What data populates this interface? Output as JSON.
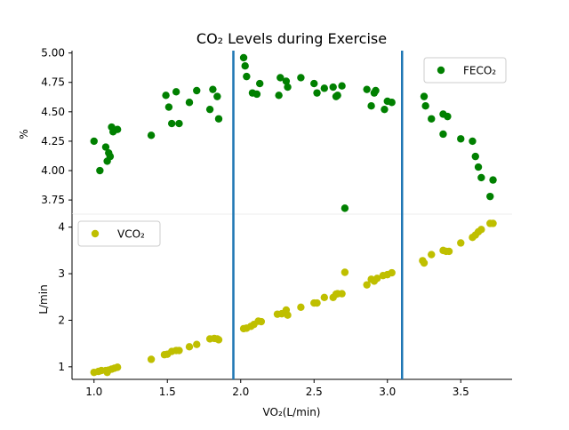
{
  "chart_data": [
    {
      "type": "scatter",
      "title": "CO₂ Levels during Exercise",
      "ylabel": "%",
      "xlim": [
        0.85,
        3.85
      ],
      "ylim": [
        3.63,
        5.02
      ],
      "yticks": [
        "3.75",
        "4.00",
        "4.25",
        "4.50",
        "4.75",
        "5.00"
      ],
      "yticks_values": [
        3.75,
        4.0,
        4.25,
        4.5,
        4.75,
        5.0
      ],
      "legend_position": "top-right",
      "vlines": [
        1.95,
        3.1
      ],
      "vline_color": "#1f77b4",
      "series": [
        {
          "name": "FECO₂",
          "color": "#008000",
          "x": [
            1.0,
            1.04,
            1.08,
            1.09,
            1.1,
            1.11,
            1.12,
            1.13,
            1.16,
            1.39,
            1.49,
            1.51,
            1.53,
            1.56,
            1.58,
            1.65,
            1.7,
            1.79,
            1.81,
            1.84,
            1.85,
            2.02,
            2.03,
            2.04,
            2.08,
            2.11,
            2.13,
            2.26,
            2.27,
            2.31,
            2.32,
            2.41,
            2.5,
            2.52,
            2.57,
            2.63,
            2.65,
            2.66,
            2.69,
            2.71,
            2.86,
            2.89,
            2.91,
            2.92,
            2.98,
            3.0,
            3.03,
            3.25,
            3.26,
            3.3,
            3.38,
            3.38,
            3.41,
            3.5,
            3.58,
            3.6,
            3.62,
            3.64,
            3.7,
            3.72
          ],
          "y": [
            4.25,
            4.0,
            4.2,
            4.08,
            4.15,
            4.12,
            4.37,
            4.33,
            4.35,
            4.3,
            4.64,
            4.54,
            4.4,
            4.67,
            4.4,
            4.58,
            4.68,
            4.52,
            4.69,
            4.63,
            4.44,
            4.96,
            4.89,
            4.8,
            4.66,
            4.65,
            4.74,
            4.64,
            4.79,
            4.76,
            4.71,
            4.79,
            4.74,
            4.66,
            4.7,
            4.71,
            4.63,
            4.64,
            4.72,
            3.68,
            4.69,
            4.55,
            4.66,
            4.68,
            4.52,
            4.59,
            4.58,
            4.63,
            4.55,
            4.44,
            4.48,
            4.31,
            4.46,
            4.27,
            4.25,
            4.12,
            4.03,
            3.94,
            3.78,
            3.92
          ]
        }
      ]
    },
    {
      "type": "scatter",
      "xlabel": "VO₂(L/min)",
      "ylabel": "L/min",
      "xlim": [
        0.85,
        3.85
      ],
      "ylim": [
        0.73,
        4.28
      ],
      "xticks": [
        "1.0",
        "1.5",
        "2.0",
        "2.5",
        "3.0",
        "3.5"
      ],
      "xticks_values": [
        1.0,
        1.5,
        2.0,
        2.5,
        3.0,
        3.5
      ],
      "yticks": [
        "1",
        "2",
        "3",
        "4"
      ],
      "yticks_values": [
        1,
        2,
        3,
        4
      ],
      "legend_position": "top-left",
      "vlines": [
        1.95,
        3.1
      ],
      "vline_color": "#1f77b4",
      "series": [
        {
          "name": "VCO₂",
          "color": "#bfbf00",
          "x": [
            1.0,
            1.03,
            1.05,
            1.08,
            1.09,
            1.1,
            1.12,
            1.14,
            1.16,
            1.39,
            1.48,
            1.5,
            1.53,
            1.56,
            1.58,
            1.65,
            1.7,
            1.79,
            1.82,
            1.84,
            1.85,
            2.02,
            2.04,
            2.07,
            2.09,
            2.12,
            2.14,
            2.25,
            2.28,
            2.31,
            2.32,
            2.41,
            2.5,
            2.52,
            2.57,
            2.63,
            2.65,
            2.66,
            2.69,
            2.71,
            2.86,
            2.89,
            2.91,
            2.93,
            2.97,
            3.0,
            3.03,
            3.24,
            3.25,
            3.3,
            3.38,
            3.4,
            3.42,
            3.5,
            3.58,
            3.6,
            3.62,
            3.64,
            3.7,
            3.72
          ],
          "y": [
            0.88,
            0.9,
            0.92,
            0.92,
            0.88,
            0.93,
            0.95,
            0.97,
            0.99,
            1.16,
            1.26,
            1.27,
            1.33,
            1.35,
            1.35,
            1.43,
            1.48,
            1.6,
            1.61,
            1.6,
            1.58,
            1.82,
            1.83,
            1.87,
            1.91,
            1.98,
            1.97,
            2.13,
            2.14,
            2.22,
            2.11,
            2.28,
            2.37,
            2.37,
            2.49,
            2.49,
            2.56,
            2.57,
            2.57,
            3.03,
            2.76,
            2.88,
            2.84,
            2.9,
            2.96,
            2.98,
            3.02,
            3.28,
            3.23,
            3.41,
            3.5,
            3.48,
            3.48,
            3.66,
            3.78,
            3.83,
            3.9,
            3.95,
            4.08,
            4.08
          ]
        }
      ]
    }
  ]
}
